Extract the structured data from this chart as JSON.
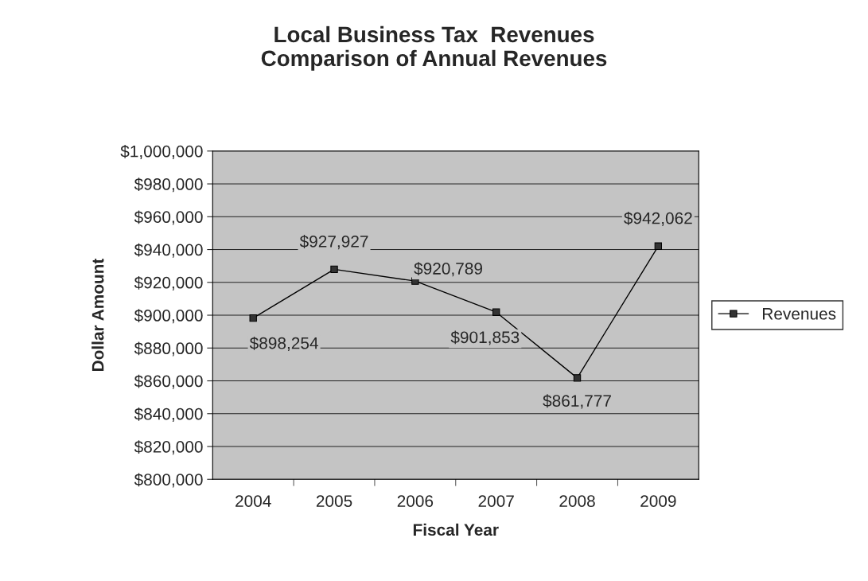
{
  "chart_data": {
    "type": "line",
    "title": "Local Business Tax  Revenues\nComparison of Annual Revenues",
    "xlabel": "Fiscal Year",
    "ylabel": "Dollar Amount",
    "categories": [
      "2004",
      "2005",
      "2006",
      "2007",
      "2008",
      "2009"
    ],
    "series": [
      {
        "name": "Revenues",
        "color": "#000000",
        "values": [
          898254,
          927927,
          920789,
          901853,
          861777,
          942062
        ],
        "value_labels": [
          "$898,254",
          "$927,927",
          "$920,789",
          "$901,853",
          "$861,777",
          "$942,062"
        ]
      }
    ],
    "ylim": [
      800000,
      1000000
    ],
    "yticks": [
      {
        "value": 800000,
        "label": "$800,000"
      },
      {
        "value": 820000,
        "label": "$820,000"
      },
      {
        "value": 840000,
        "label": "$840,000"
      },
      {
        "value": 860000,
        "label": "$860,000"
      },
      {
        "value": 880000,
        "label": "$880,000"
      },
      {
        "value": 900000,
        "label": "$900,000"
      },
      {
        "value": 920000,
        "label": "$920,000"
      },
      {
        "value": 940000,
        "label": "$940,000"
      },
      {
        "value": 960000,
        "label": "$960,000"
      },
      {
        "value": 980000,
        "label": "$980,000"
      },
      {
        "value": 1000000,
        "label": "$1,000,000"
      }
    ],
    "grid": "y",
    "legend": "right",
    "marker": "square",
    "line_style": "solid"
  }
}
